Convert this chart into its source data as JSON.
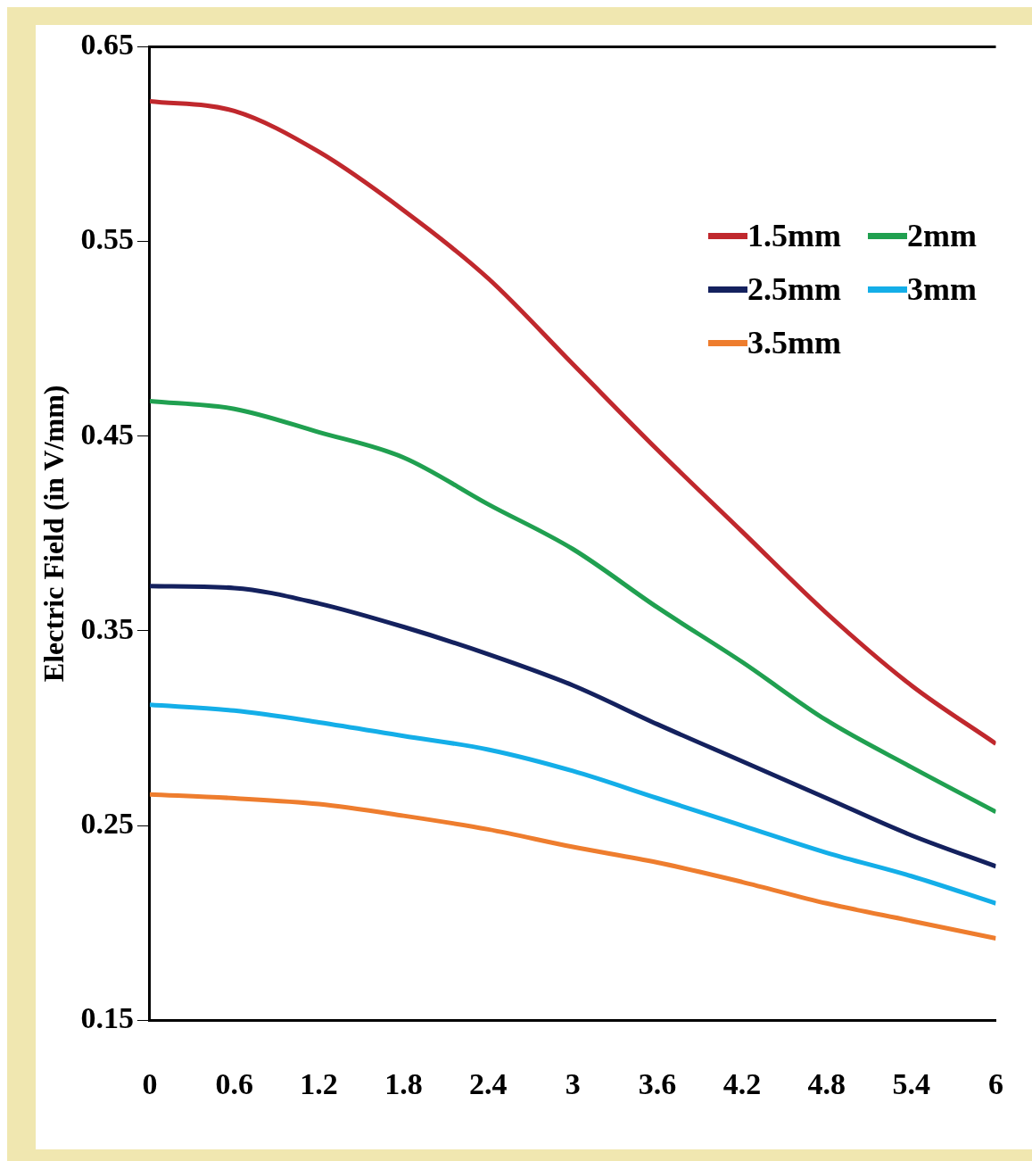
{
  "chart_data": {
    "type": "line",
    "ylabel": "Electric Field (in V/mm)",
    "x": [
      0,
      0.6,
      1.2,
      1.8,
      2.4,
      3,
      3.6,
      4.2,
      4.8,
      5.4,
      6
    ],
    "xlim": [
      0,
      6
    ],
    "xticks": [
      0,
      0.6,
      1.2,
      1.8,
      2.4,
      3,
      3.6,
      4.2,
      4.8,
      5.4,
      6
    ],
    "ylim": [
      0.15,
      0.65
    ],
    "yticks": [
      0.15,
      0.25,
      0.35,
      0.45,
      0.55,
      0.65
    ],
    "grid": false,
    "legend": "top right",
    "marker": "none",
    "line_style": "solid",
    "series": [
      {
        "name": "1.5mm",
        "color": "#c0282d",
        "values": [
          0.622,
          0.617,
          0.596,
          0.566,
          0.531,
          0.487,
          0.443,
          0.401,
          0.359,
          0.322,
          0.292
        ]
      },
      {
        "name": "2mm",
        "color": "#20a050",
        "values": [
          0.468,
          0.464,
          0.452,
          0.439,
          0.415,
          0.392,
          0.362,
          0.334,
          0.304,
          0.28,
          0.257
        ]
      },
      {
        "name": "2.5mm",
        "color": "#14215e",
        "values": [
          0.373,
          0.372,
          0.364,
          0.352,
          0.338,
          0.322,
          0.302,
          0.283,
          0.264,
          0.245,
          0.229
        ]
      },
      {
        "name": "3mm",
        "color": "#14aee8",
        "values": [
          0.312,
          0.309,
          0.303,
          0.296,
          0.289,
          0.278,
          0.264,
          0.25,
          0.236,
          0.224,
          0.21
        ]
      },
      {
        "name": "3.5mm",
        "color": "#ee7d2e",
        "values": [
          0.266,
          0.264,
          0.261,
          0.255,
          0.248,
          0.239,
          0.231,
          0.221,
          0.21,
          0.201,
          0.192
        ]
      }
    ]
  }
}
